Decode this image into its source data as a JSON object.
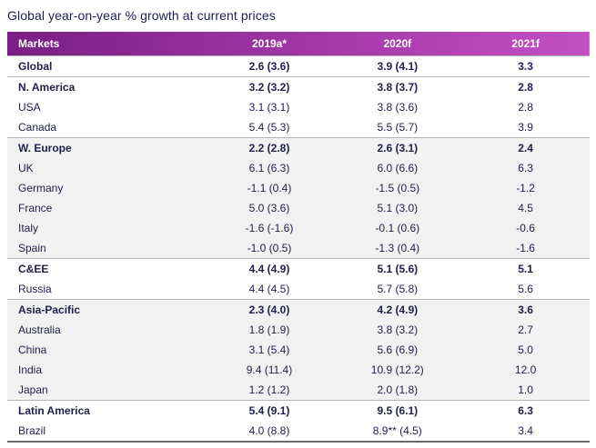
{
  "title": "Global year-on-year % growth at current prices",
  "chart_data": {
    "type": "table",
    "title": "Global year-on-year % growth at current prices",
    "columns": [
      "Markets",
      "2019a*",
      "2020f",
      "2021f"
    ],
    "rows": [
      {
        "market": "Global",
        "values": [
          "2.6 (3.6)",
          "3.9 (4.1)",
          "3.3"
        ],
        "bold": true,
        "shaded": false,
        "section": true
      },
      {
        "market": "N. America",
        "values": [
          "3.2 (3.2)",
          "3.8 (3.7)",
          "2.8"
        ],
        "bold": true,
        "shaded": false,
        "section": true
      },
      {
        "market": "USA",
        "values": [
          "3.1 (3.1)",
          "3.8 (3.6)",
          "2.8"
        ],
        "bold": false,
        "shaded": false,
        "section": false
      },
      {
        "market": "Canada",
        "values": [
          "5.4 (5.3)",
          "5.5 (5.7)",
          "3.9"
        ],
        "bold": false,
        "shaded": false,
        "section": false
      },
      {
        "market": "W. Europe",
        "values": [
          "2.2 (2.8)",
          "2.6 (3.1)",
          "2.4"
        ],
        "bold": true,
        "shaded": true,
        "section": true
      },
      {
        "market": "UK",
        "values": [
          "6.1 (6.3)",
          "6.0 (6.6)",
          "6.3"
        ],
        "bold": false,
        "shaded": true,
        "section": false
      },
      {
        "market": "Germany",
        "values": [
          "-1.1 (0.4)",
          "-1.5 (0.5)",
          "-1.2"
        ],
        "bold": false,
        "shaded": true,
        "section": false
      },
      {
        "market": "France",
        "values": [
          "5.0 (3.6)",
          "5.1 (3.0)",
          "4.5"
        ],
        "bold": false,
        "shaded": true,
        "section": false
      },
      {
        "market": "Italy",
        "values": [
          "-1.6 (-1.6)",
          "-0.1 (0.6)",
          "-0.6"
        ],
        "bold": false,
        "shaded": true,
        "section": false
      },
      {
        "market": "Spain",
        "values": [
          "-1.0 (0.5)",
          "-1.3 (0.4)",
          "-1.6"
        ],
        "bold": false,
        "shaded": true,
        "section": false
      },
      {
        "market": "C&EE",
        "values": [
          "4.4 (4.9)",
          "5.1 (5.6)",
          "5.1"
        ],
        "bold": true,
        "shaded": false,
        "section": true
      },
      {
        "market": "Russia",
        "values": [
          "4.4 (4.5)",
          "5.7 (5.8)",
          "5.6"
        ],
        "bold": false,
        "shaded": false,
        "section": false
      },
      {
        "market": "Asia-Pacific",
        "values": [
          "2.3 (4.0)",
          "4.2 (4.9)",
          "3.6"
        ],
        "bold": true,
        "shaded": true,
        "section": true
      },
      {
        "market": "Australia",
        "values": [
          "1.8 (1.9)",
          "3.8 (3.2)",
          "2.7"
        ],
        "bold": false,
        "shaded": true,
        "section": false
      },
      {
        "market": "China",
        "values": [
          "3.1 (5.4)",
          "5.6 (6.9)",
          "5.0"
        ],
        "bold": false,
        "shaded": true,
        "section": false
      },
      {
        "market": "India",
        "values": [
          "9.4 (11.4)",
          "10.9 (12.2)",
          "12.0"
        ],
        "bold": false,
        "shaded": true,
        "section": false
      },
      {
        "market": "Japan",
        "values": [
          "1.2 (1.2)",
          "2.0 (1.8)",
          "1.0"
        ],
        "bold": false,
        "shaded": true,
        "section": false
      },
      {
        "market": "Latin America",
        "values": [
          "5.4 (9.1)",
          "9.5 (6.1)",
          "6.3"
        ],
        "bold": true,
        "shaded": false,
        "section": true
      },
      {
        "market": "Brazil",
        "values": [
          "4.0 (8.8)",
          "8.9** (4.5)",
          "3.4"
        ],
        "bold": false,
        "shaded": false,
        "section": false
      }
    ]
  },
  "colors": {
    "header_gradient_start": "#7b1e86",
    "header_gradient_end": "#c44fc4",
    "title_text": "#1d1d4f",
    "body_text": "#21214b",
    "shaded_row": "#f2f2f2"
  }
}
